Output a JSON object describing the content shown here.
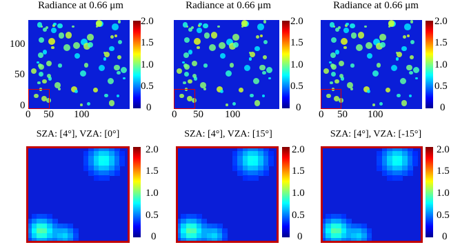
{
  "colors": {
    "background": "#0a1ed8",
    "roi": "#c00000"
  },
  "chart_data": [
    {
      "type": "heatmap",
      "title": "Radiance at 0.66 μm",
      "xticks": [
        "0",
        "50",
        "100"
      ],
      "yticks": [
        "0",
        "50",
        "100"
      ],
      "colorbar": {
        "ticks": [
          "2.0",
          "1.5",
          "1.0",
          "0.5",
          "0"
        ],
        "range": [
          0,
          2.0
        ]
      },
      "xlim": [
        0,
        150
      ],
      "ylim": [
        0,
        150
      ],
      "roi": {
        "x": [
          0,
          30
        ],
        "y": [
          0,
          30
        ]
      }
    },
    {
      "type": "heatmap",
      "title": "Radiance at 0.66 μm",
      "xticks": [
        "0",
        "50",
        "100"
      ],
      "yticks": [],
      "colorbar": {
        "ticks": [
          "2.0",
          "1.5",
          "1.0",
          "0.5",
          "0"
        ],
        "range": [
          0,
          2.0
        ]
      },
      "xlim": [
        0,
        150
      ],
      "ylim": [
        0,
        150
      ],
      "roi": {
        "x": [
          0,
          30
        ],
        "y": [
          0,
          30
        ]
      }
    },
    {
      "type": "heatmap",
      "title": "Radiance at 0.66 μm",
      "xticks": [
        "0",
        "50",
        "100"
      ],
      "yticks": [],
      "colorbar": {
        "ticks": [
          "2.0",
          "1.5",
          "1.0",
          "0.5",
          "0"
        ],
        "range": [
          0,
          2.0
        ]
      },
      "xlim": [
        0,
        150
      ],
      "ylim": [
        0,
        150
      ],
      "roi": {
        "x": [
          0,
          30
        ],
        "y": [
          0,
          30
        ]
      }
    },
    {
      "type": "heatmap",
      "title": "SZA: [4°], VZA: [0°]",
      "colorbar": {
        "ticks": [
          "2.0",
          "1.5",
          "1.0",
          "0.5",
          "0"
        ],
        "range": [
          0,
          2.0
        ]
      }
    },
    {
      "type": "heatmap",
      "title": "SZA: [4°], VZA: [15°]",
      "colorbar": {
        "ticks": [
          "2.0",
          "1.5",
          "1.0",
          "0.5",
          "0"
        ],
        "range": [
          0,
          2.0
        ]
      }
    },
    {
      "type": "heatmap",
      "title": "SZA: [4°], VZA: [-15°]",
      "colorbar": {
        "ticks": [
          "2.0",
          "1.5",
          "1.0",
          "0.5",
          "0"
        ],
        "range": [
          0,
          2.0
        ]
      }
    }
  ]
}
